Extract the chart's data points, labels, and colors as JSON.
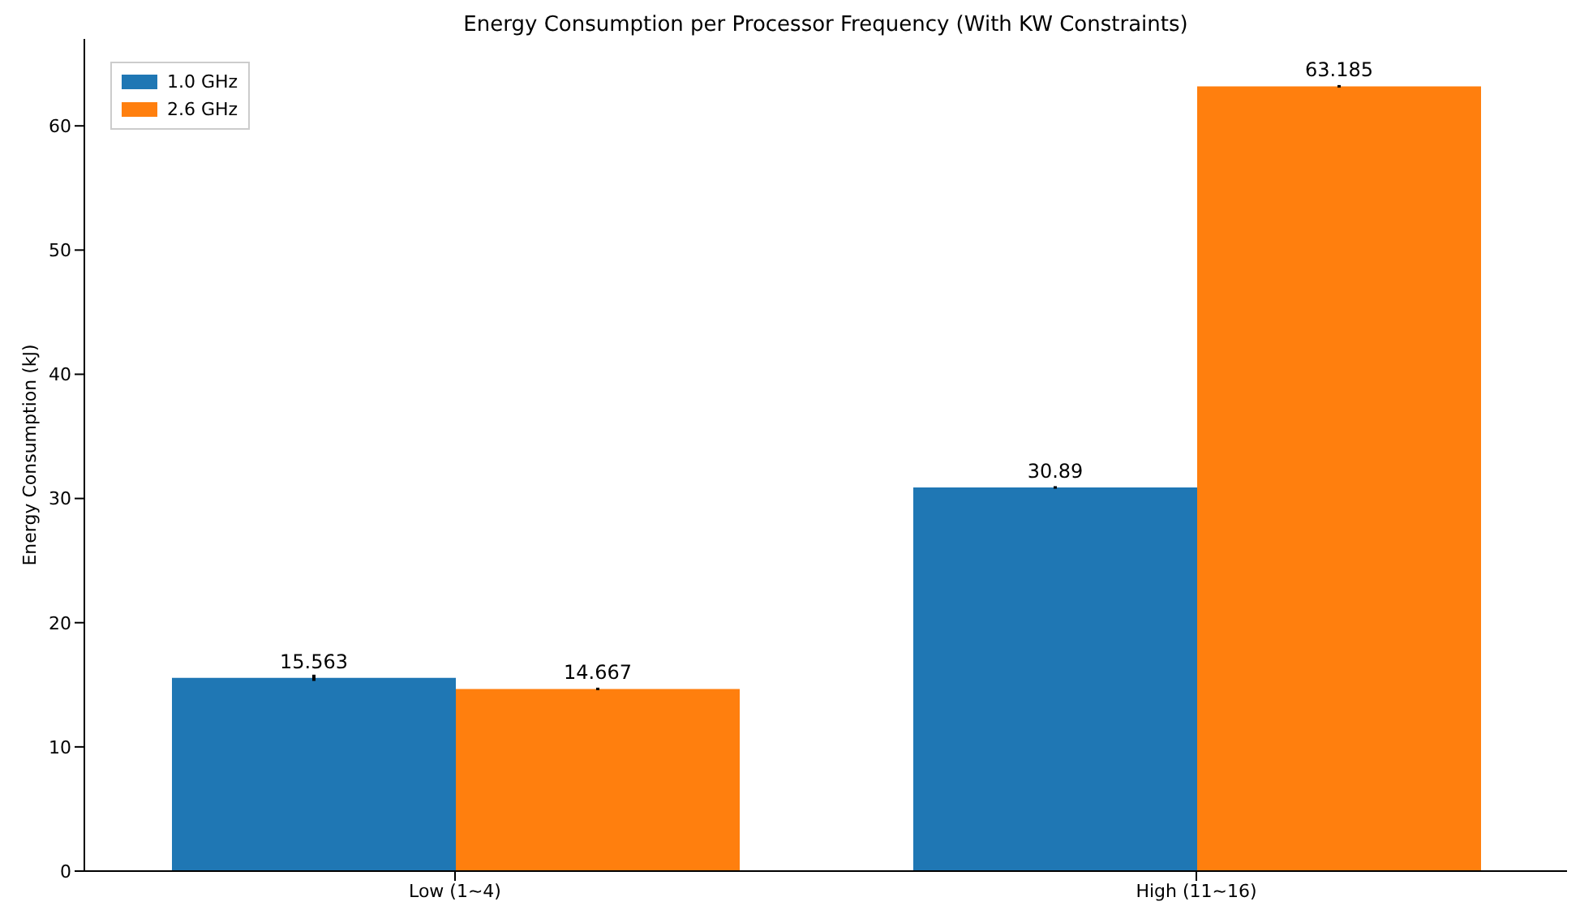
{
  "chart_data": {
    "type": "bar",
    "title": "Energy Consumption per Processor Frequency (With KW Constraints)",
    "ylabel": "Energy Consumption (kJ)",
    "categories": [
      "Low (1~4)",
      "High (11~16)"
    ],
    "series": [
      {
        "name": "1.0 GHz",
        "color": "#1f77b4",
        "values": [
          15.563,
          30.89
        ],
        "errors": [
          0.25,
          0.1
        ]
      },
      {
        "name": "2.6 GHz",
        "color": "#ff7f0e",
        "values": [
          14.667,
          63.185
        ],
        "errors": [
          0.1,
          0.1
        ]
      }
    ],
    "ylim": [
      0,
      67
    ],
    "yticks": [
      0,
      10,
      20,
      30,
      40,
      50,
      60
    ],
    "data_labels": true,
    "legend": "top left",
    "grid": false
  }
}
